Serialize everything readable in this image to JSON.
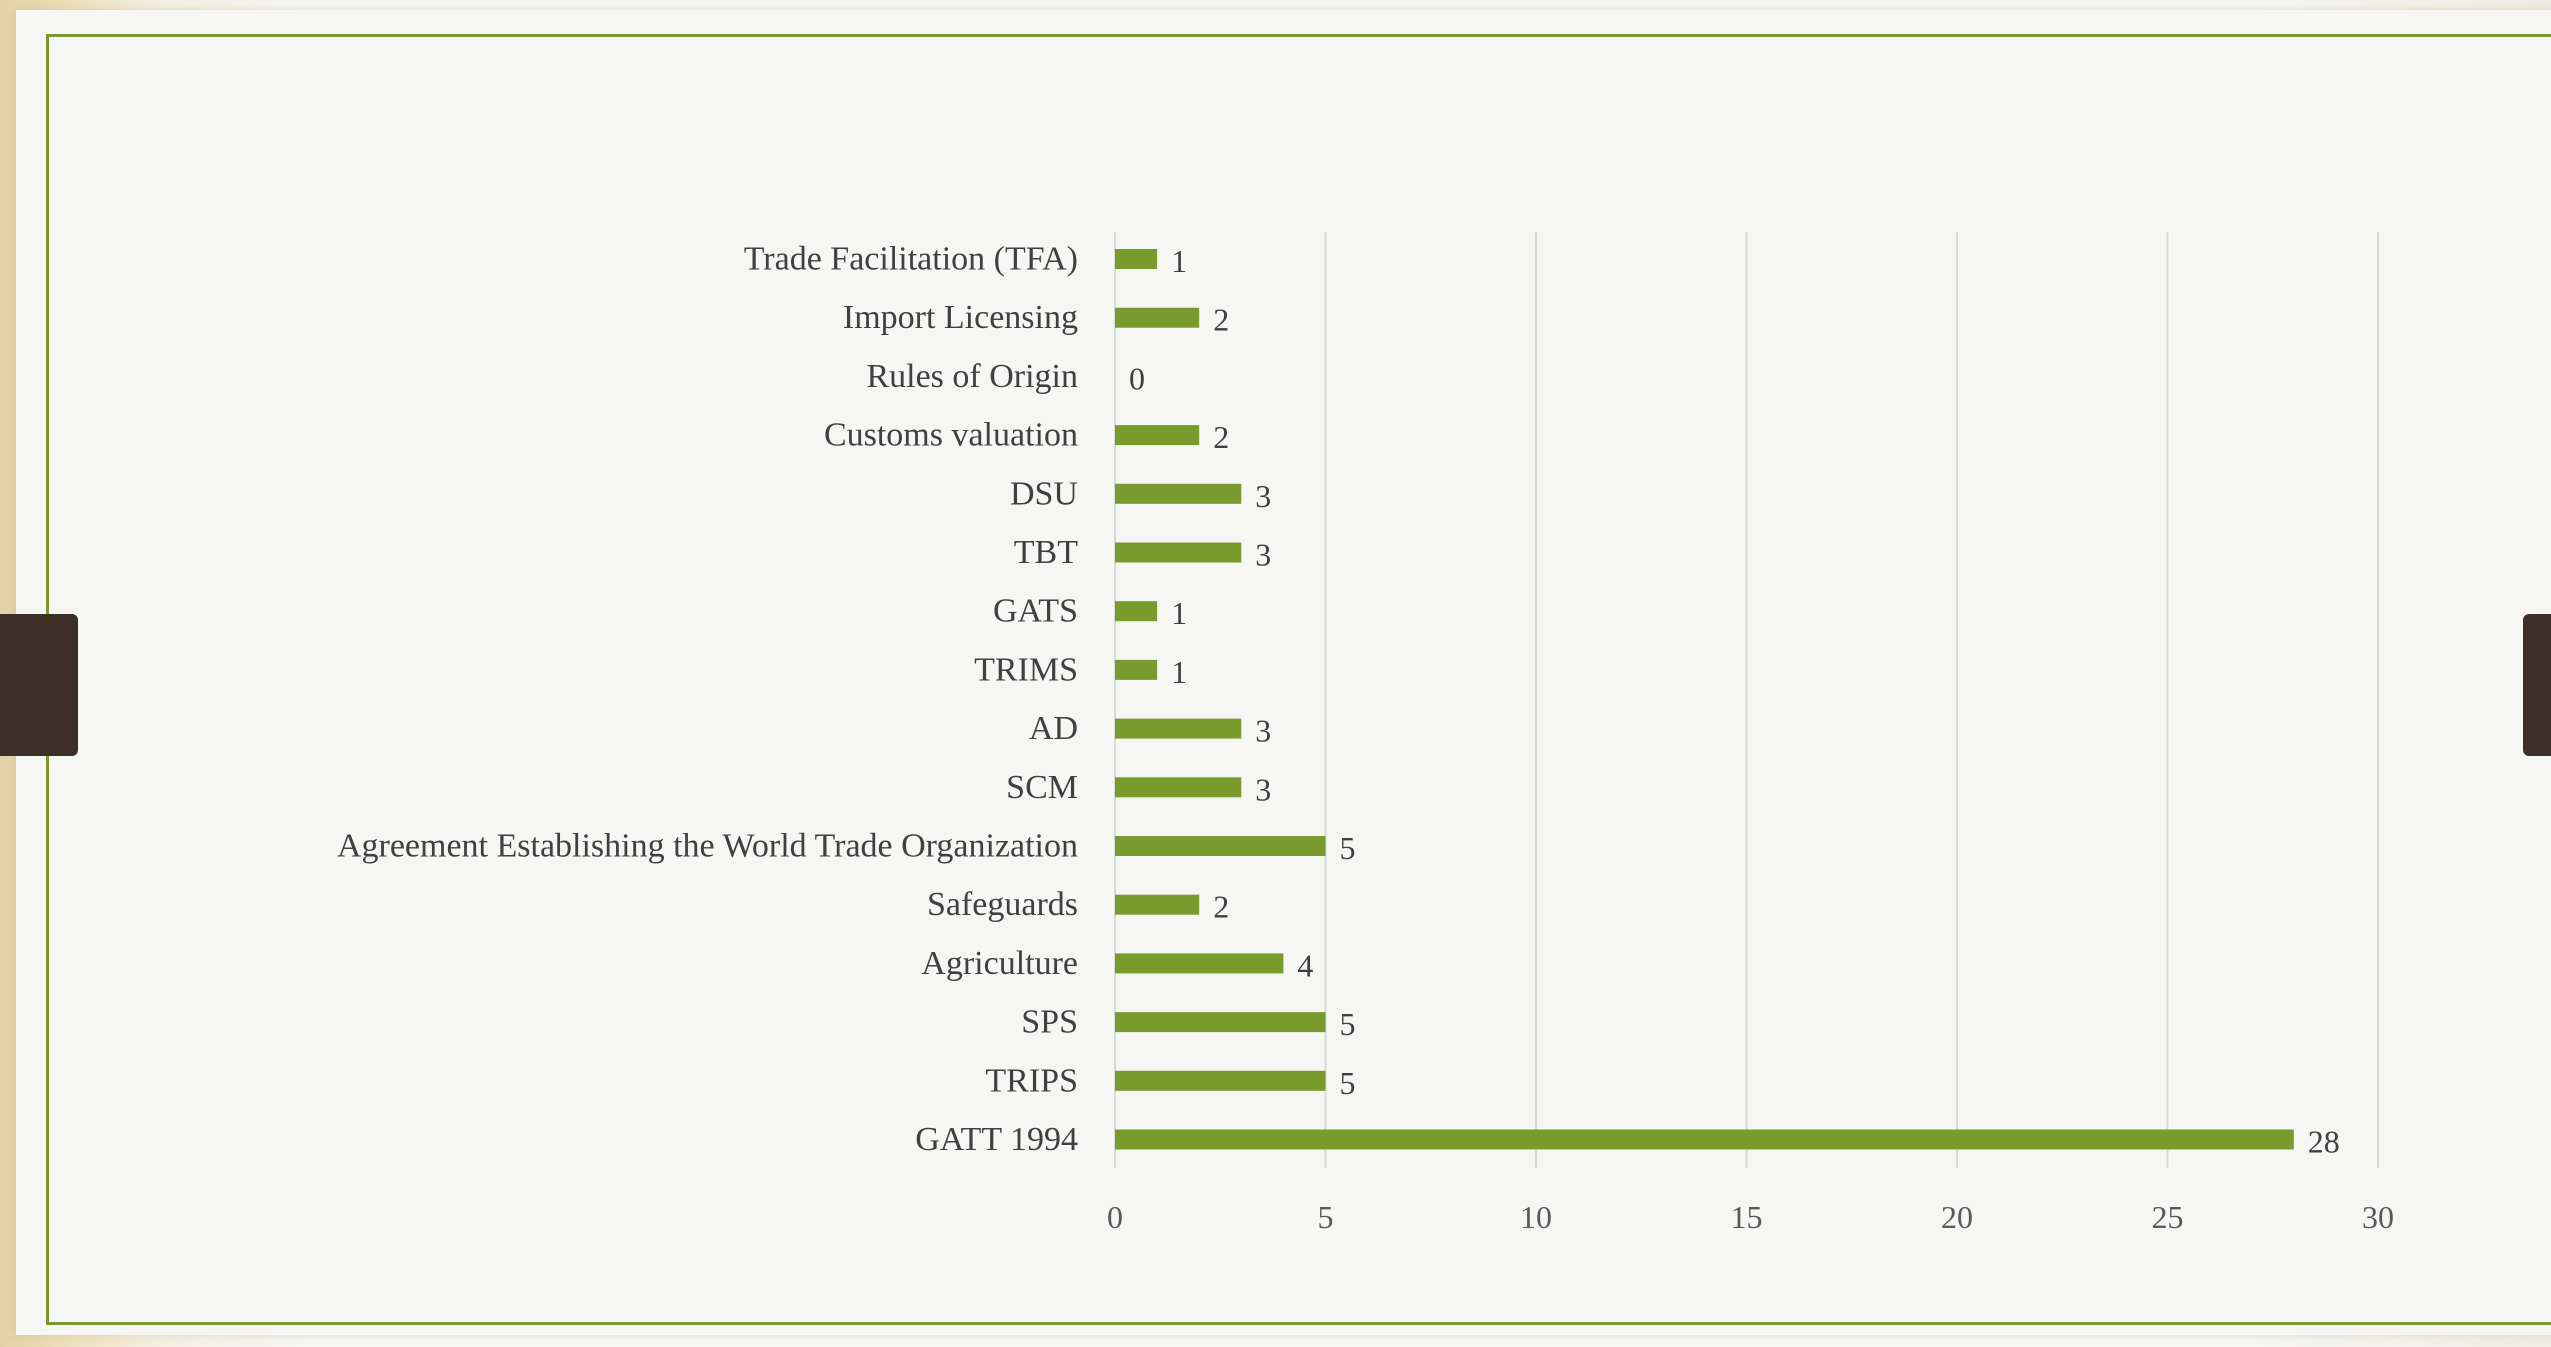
{
  "chart_data": {
    "type": "bar",
    "orientation": "horizontal",
    "categories": [
      "Trade Facilitation (TFA)",
      "Import Licensing",
      "Rules of Origin",
      "Customs valuation",
      "DSU",
      "TBT",
      "GATS",
      "TRIMS",
      "AD",
      "SCM",
      "Agreement Establishing the World Trade Organization",
      "Safeguards",
      "Agriculture",
      "SPS",
      "TRIPS",
      "GATT 1994"
    ],
    "values": [
      1,
      2,
      0,
      2,
      3,
      3,
      1,
      1,
      3,
      3,
      5,
      2,
      4,
      5,
      5,
      28
    ],
    "data_labels": [
      "1",
      "2",
      "0",
      "2",
      "3",
      "3",
      "1",
      "1",
      "3",
      "3",
      "5",
      "2",
      "4",
      "5",
      "5",
      "28"
    ],
    "xlim": [
      0,
      30
    ],
    "x_ticks": [
      "0",
      "5",
      "10",
      "15",
      "20",
      "25",
      "30"
    ],
    "title": "",
    "xlabel": "",
    "ylabel": "",
    "grid": "vertical",
    "legend": "none",
    "colors": {
      "bar": "#7a9a2e",
      "grid": "#d9d9d9",
      "frame": "#7d9630"
    }
  }
}
